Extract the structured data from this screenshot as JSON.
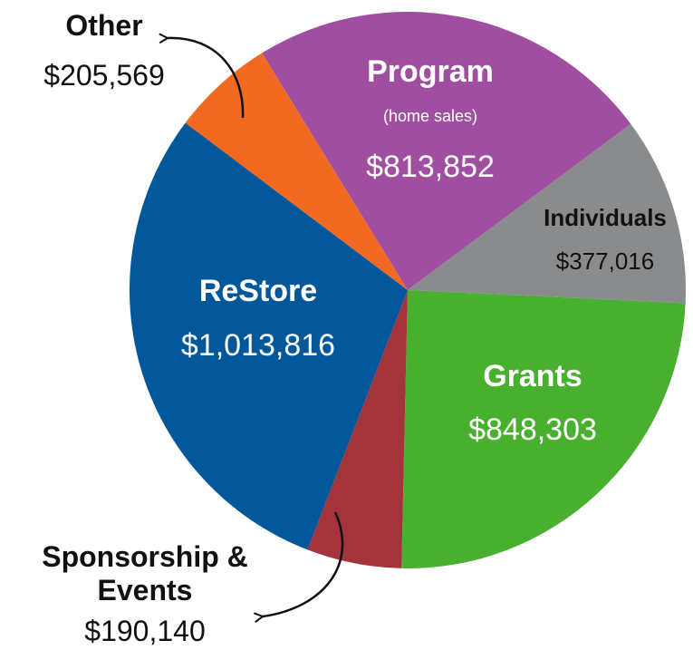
{
  "chart_data": {
    "type": "pie",
    "categories": [
      "Program",
      "Individuals",
      "Grants",
      "Sponsorship & Events",
      "ReStore",
      "Other"
    ],
    "values": [
      813852,
      377016,
      848303,
      190140,
      1013816,
      205569
    ],
    "value_labels": [
      "$813,852",
      "$377,016",
      "$848,303",
      "$190,140",
      "$1,013,816",
      "$205,569"
    ],
    "colors": [
      "#a04ea0",
      "#898b8d",
      "#48af2f",
      "#a3343b",
      "#02579a",
      "#f26a21"
    ],
    "annotations": [
      "(home sales)"
    ]
  }
}
